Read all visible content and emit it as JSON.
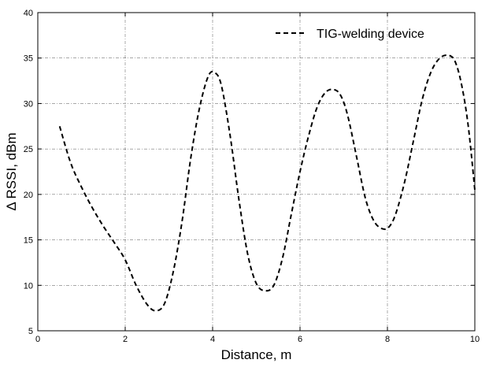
{
  "chart_data": {
    "type": "line",
    "title": "",
    "xlabel": "Distance, m",
    "ylabel": "Δ RSSI, dBm",
    "xlim": [
      0,
      10
    ],
    "ylim": [
      5,
      40
    ],
    "xticks": [
      0,
      2,
      4,
      6,
      8,
      10
    ],
    "yticks": [
      5,
      10,
      15,
      20,
      25,
      30,
      35,
      40
    ],
    "grid": true,
    "legend_position": "top-right",
    "series": [
      {
        "name": "TIG-welding device",
        "color": "#000000",
        "line_style": "dashed",
        "x": [
          0.5,
          0.75,
          1.0,
          1.25,
          1.5,
          1.75,
          2.0,
          2.25,
          2.5,
          2.7,
          2.9,
          3.1,
          3.3,
          3.5,
          3.7,
          3.9,
          4.05,
          4.2,
          4.4,
          4.6,
          4.8,
          5.0,
          5.2,
          5.4,
          5.6,
          5.8,
          6.0,
          6.2,
          6.4,
          6.6,
          6.8,
          6.95,
          7.1,
          7.3,
          7.5,
          7.7,
          7.9,
          8.05,
          8.2,
          8.4,
          8.6,
          8.8,
          9.0,
          9.2,
          9.4,
          9.55,
          9.7,
          9.85,
          10.0
        ],
        "values": [
          27.5,
          23.5,
          20.8,
          18.5,
          16.5,
          14.7,
          12.8,
          10.0,
          7.9,
          7.2,
          8.0,
          11.5,
          17.0,
          24.0,
          29.5,
          33.0,
          33.4,
          32.0,
          26.5,
          19.5,
          13.5,
          10.2,
          9.4,
          10.0,
          13.0,
          17.8,
          22.5,
          26.5,
          29.7,
          31.3,
          31.5,
          30.7,
          28.5,
          24.0,
          19.5,
          17.0,
          16.2,
          16.5,
          18.0,
          21.5,
          26.0,
          30.5,
          33.5,
          35.0,
          35.3,
          34.6,
          32.0,
          27.5,
          20.5
        ]
      }
    ]
  }
}
